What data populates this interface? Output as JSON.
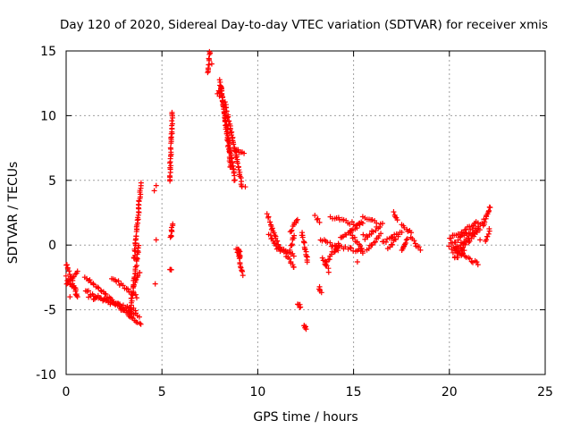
{
  "chart_data": {
    "type": "scatter",
    "title": "Day 120 of 2020, Sidereal Day-to-day VTEC variation (SDTVAR) for receiver xmis",
    "xlabel": "GPS time / hours",
    "ylabel": "SDTVAR / TECUs",
    "xlim": [
      0,
      25
    ],
    "ylim": [
      -10,
      15
    ],
    "xticks": [
      0,
      5,
      10,
      15,
      20,
      25
    ],
    "yticks": [
      -10,
      -5,
      0,
      5,
      10,
      15
    ],
    "x_tick_labels": [
      "0",
      "5",
      "10",
      "15",
      "20",
      "25"
    ],
    "y_tick_labels": [
      "-10",
      "-5",
      "0",
      "5",
      "10",
      "15"
    ],
    "grid": true,
    "marker": "+",
    "color": "#ff0000",
    "series": [
      {
        "name": "SDTVAR",
        "segments": [
          {
            "x": [
              0.0,
              0.6
            ],
            "y": [
              -1.5,
              -4.0
            ]
          },
          {
            "x": [
              0.0,
              0.6
            ],
            "y": [
              -3.0,
              -2.0
            ]
          },
          {
            "x": [
              0.0,
              0.5
            ],
            "y": [
              -2.5,
              -3.5
            ]
          },
          {
            "x": [
              1.0,
              3.9
            ],
            "y": [
              -2.5,
              -6.2
            ]
          },
          {
            "x": [
              1.0,
              3.8
            ],
            "y": [
              -3.5,
              -5.5
            ]
          },
          {
            "x": [
              1.2,
              3.6
            ],
            "y": [
              -4.0,
              -5.0
            ]
          },
          {
            "x": [
              2.4,
              3.7
            ],
            "y": [
              -2.5,
              -4.0
            ]
          },
          {
            "x": [
              3.5,
              3.85
            ],
            "y": [
              -3.2,
              -2.0
            ]
          },
          {
            "x": [
              3.3,
              3.8
            ],
            "y": [
              -5.5,
              0.0
            ]
          },
          {
            "x": [
              3.55,
              3.9
            ],
            "y": [
              -1.0,
              4.7
            ]
          },
          {
            "x": [
              5.4,
              5.55
            ],
            "y": [
              5.0,
              10.2
            ]
          },
          {
            "x": [
              5.4,
              5.5
            ],
            "y": [
              -1.8,
              -2.0
            ]
          },
          {
            "x": [
              5.45,
              5.55
            ],
            "y": [
              0.5,
              1.7
            ]
          },
          {
            "x": [
              7.4,
              7.5
            ],
            "y": [
              13.3,
              14.9
            ]
          },
          {
            "x": [
              7.9,
              8.0
            ],
            "y": [
              11.7,
              12.0
            ]
          },
          {
            "x": [
              8.0,
              8.8
            ],
            "y": [
              12.7,
              5.0
            ]
          },
          {
            "x": [
              8.1,
              8.6
            ],
            "y": [
              12.3,
              6.0
            ]
          },
          {
            "x": [
              8.3,
              9.2
            ],
            "y": [
              11.0,
              4.5
            ]
          },
          {
            "x": [
              8.8,
              9.3
            ],
            "y": [
              7.5,
              7.0
            ]
          },
          {
            "x": [
              8.9,
              9.2
            ],
            "y": [
              -0.2,
              -2.3
            ]
          },
          {
            "x": [
              9.0,
              9.1
            ],
            "y": [
              -0.3,
              -1.0
            ]
          },
          {
            "x": [
              10.5,
              11.2
            ],
            "y": [
              2.3,
              -0.5
            ]
          },
          {
            "x": [
              10.6,
              11.0
            ],
            "y": [
              0.8,
              -0.2
            ]
          },
          {
            "x": [
              11.1,
              11.9
            ],
            "y": [
              -0.2,
              -0.8
            ]
          },
          {
            "x": [
              11.4,
              11.9
            ],
            "y": [
              -0.5,
              -1.8
            ]
          },
          {
            "x": [
              11.7,
              12.1
            ],
            "y": [
              1.0,
              2.0
            ]
          },
          {
            "x": [
              11.7,
              11.9
            ],
            "y": [
              -0.3,
              0.8
            ]
          },
          {
            "x": [
              12.1,
              12.2
            ],
            "y": [
              -4.5,
              -4.9
            ]
          },
          {
            "x": [
              12.4,
              12.5
            ],
            "y": [
              -6.2,
              -6.5
            ]
          },
          {
            "x": [
              12.3,
              12.6
            ],
            "y": [
              1.0,
              -1.3
            ]
          },
          {
            "x": [
              13.0,
              13.2
            ],
            "y": [
              2.2,
              1.8
            ]
          },
          {
            "x": [
              13.2,
              13.3
            ],
            "y": [
              -3.3,
              -3.6
            ]
          },
          {
            "x": [
              13.4,
              13.7
            ],
            "y": [
              -1.0,
              -2.0
            ]
          },
          {
            "x": [
              13.3,
              14.2
            ],
            "y": [
              0.5,
              -0.3
            ]
          },
          {
            "x": [
              13.5,
              14.2
            ],
            "y": [
              -1.5,
              0.0
            ]
          },
          {
            "x": [
              13.8,
              15.3
            ],
            "y": [
              2.2,
              1.5
            ]
          },
          {
            "x": [
              14.0,
              15.5
            ],
            "y": [
              0.0,
              -0.5
            ]
          },
          {
            "x": [
              14.3,
              15.5
            ],
            "y": [
              0.5,
              1.8
            ]
          },
          {
            "x": [
              14.8,
              15.5
            ],
            "y": [
              1.0,
              -0.5
            ]
          },
          {
            "x": [
              15.5,
              16.2
            ],
            "y": [
              2.2,
              1.8
            ]
          },
          {
            "x": [
              15.6,
              16.5
            ],
            "y": [
              0.5,
              1.7
            ]
          },
          {
            "x": [
              15.7,
              16.4
            ],
            "y": [
              -0.3,
              0.8
            ]
          },
          {
            "x": [
              16.5,
              17.5
            ],
            "y": [
              0.2,
              1.0
            ]
          },
          {
            "x": [
              16.8,
              17.3
            ],
            "y": [
              -0.2,
              0.6
            ]
          },
          {
            "x": [
              17.1,
              17.3
            ],
            "y": [
              2.5,
              2.0
            ]
          },
          {
            "x": [
              17.5,
              18.0
            ],
            "y": [
              1.5,
              1.0
            ]
          },
          {
            "x": [
              17.5,
              17.8
            ],
            "y": [
              -0.5,
              0.5
            ]
          },
          {
            "x": [
              18.0,
              18.5
            ],
            "y": [
              0.5,
              -0.3
            ]
          },
          {
            "x": [
              20.0,
              21.5
            ],
            "y": [
              0.5,
              1.8
            ]
          },
          {
            "x": [
              20.0,
              21.2
            ],
            "y": [
              0.0,
              1.2
            ]
          },
          {
            "x": [
              20.2,
              21.6
            ],
            "y": [
              -0.5,
              1.5
            ]
          },
          {
            "x": [
              20.1,
              21.5
            ],
            "y": [
              -0.2,
              -1.5
            ]
          },
          {
            "x": [
              20.3,
              21.6
            ],
            "y": [
              -0.8,
              1.3
            ]
          },
          {
            "x": [
              20.3,
              20.8
            ],
            "y": [
              -1.0,
              -0.5
            ]
          },
          {
            "x": [
              21.8,
              22.1
            ],
            "y": [
              1.5,
              3.0
            ]
          },
          {
            "x": [
              21.9,
              22.1
            ],
            "y": [
              0.3,
              1.2
            ]
          }
        ],
        "points": [
          {
            "x": 0.2,
            "y": -4.0
          },
          {
            "x": 0.5,
            "y": -3.8
          },
          {
            "x": 4.6,
            "y": 4.2
          },
          {
            "x": 4.7,
            "y": 4.6
          },
          {
            "x": 4.7,
            "y": 0.4
          },
          {
            "x": 4.65,
            "y": -3.0
          },
          {
            "x": 7.6,
            "y": 14.0
          },
          {
            "x": 8.0,
            "y": 11.5
          },
          {
            "x": 9.35,
            "y": 4.5
          },
          {
            "x": 12.2,
            "y": -4.6
          },
          {
            "x": 12.5,
            "y": -6.3
          },
          {
            "x": 13.2,
            "y": -3.4
          },
          {
            "x": 15.2,
            "y": -1.3
          },
          {
            "x": 15.5,
            "y": 0.8
          },
          {
            "x": 17.0,
            "y": 0.6
          },
          {
            "x": 21.7,
            "y": 1.7
          },
          {
            "x": 21.8,
            "y": 2.0
          },
          {
            "x": 21.6,
            "y": 0.4
          }
        ]
      }
    ]
  }
}
